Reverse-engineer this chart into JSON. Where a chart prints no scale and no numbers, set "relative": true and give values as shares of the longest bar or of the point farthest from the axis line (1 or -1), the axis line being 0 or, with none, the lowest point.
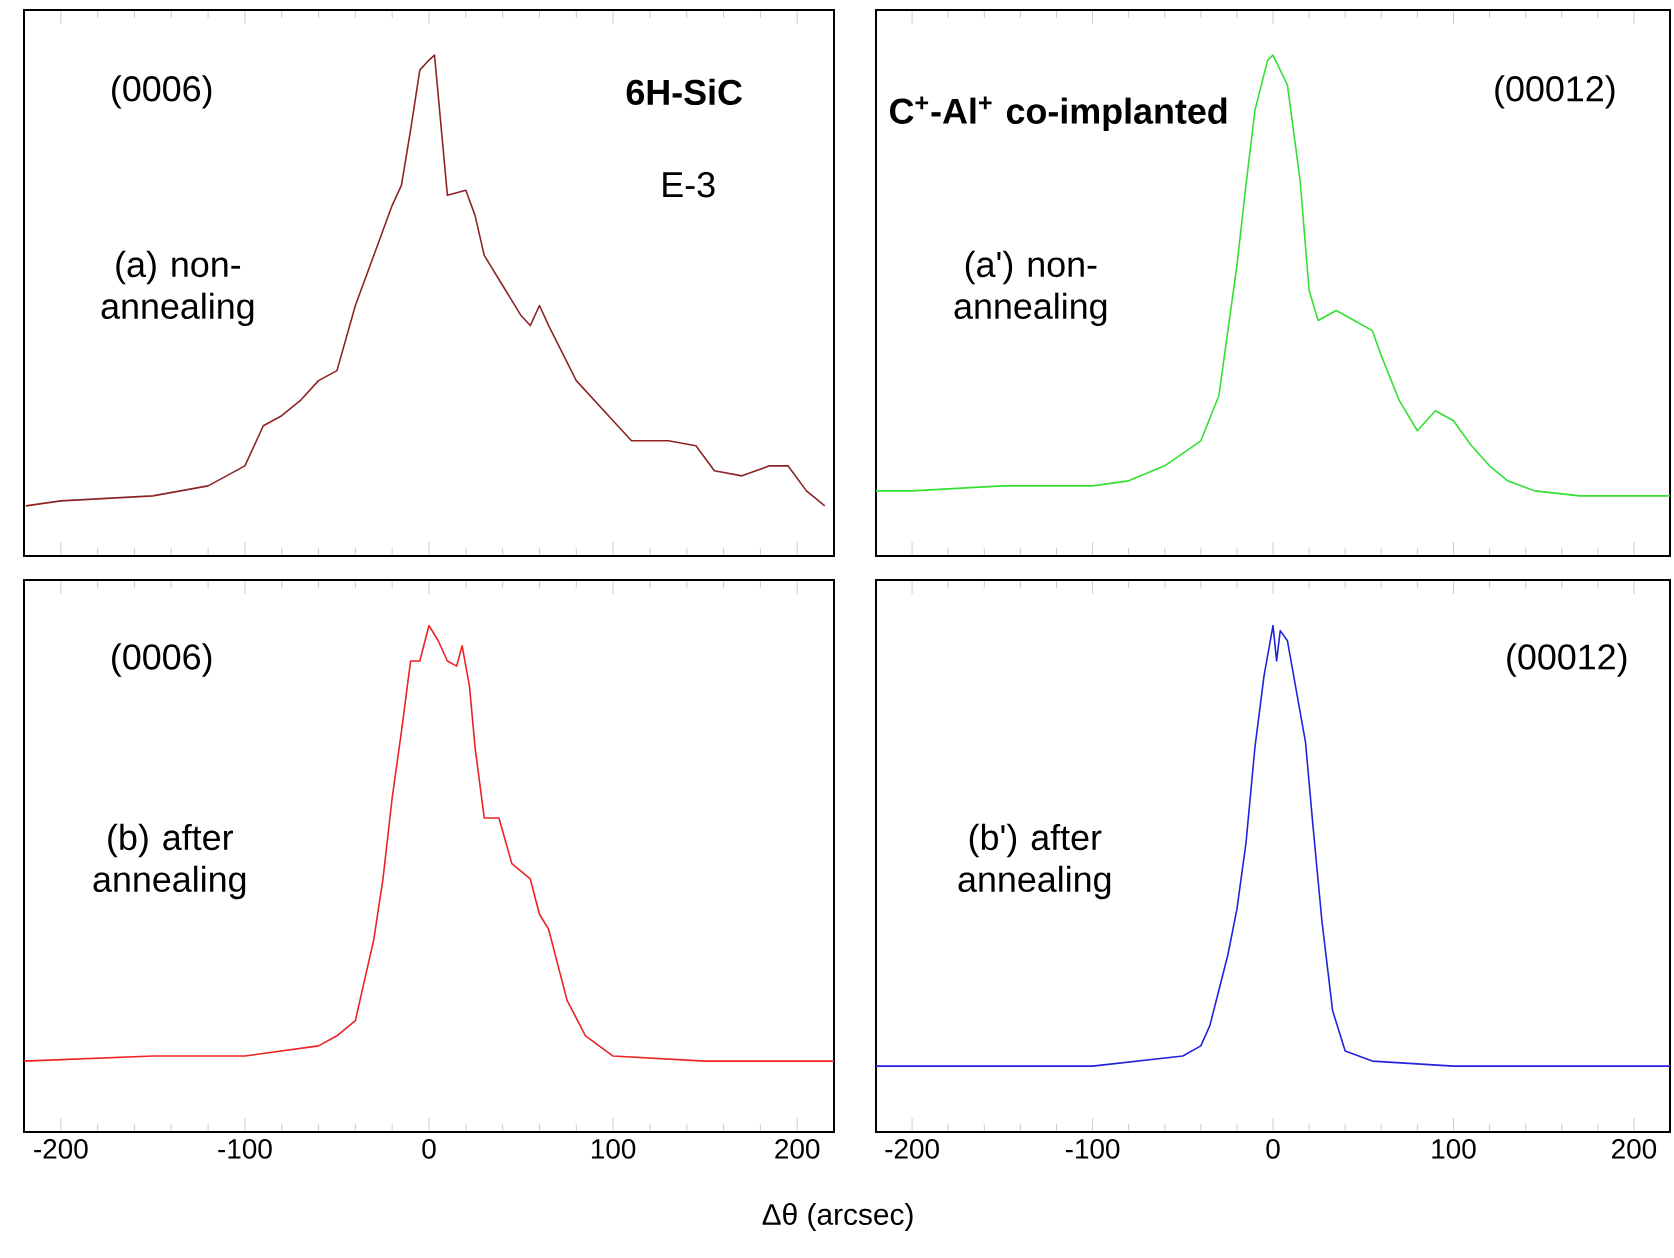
{
  "chart_data": [
    {
      "type": "line",
      "relative": true,
      "xlim": [
        -220,
        220
      ],
      "xticks": [
        -200,
        -100,
        0,
        100,
        200
      ],
      "tick_labels": false,
      "annotations": [
        "(0006)",
        "6H-SiC",
        "E-3",
        "(a) non-annealing"
      ],
      "series": [
        {
          "color": "#8b2525",
          "x": [
            -219,
            -200,
            -150,
            -120,
            -110,
            -100,
            -90,
            -80,
            -70,
            -60,
            -50,
            -40,
            -30,
            -20,
            -15,
            -10,
            -5,
            0,
            3,
            7,
            10,
            20,
            25,
            30,
            40,
            50,
            55,
            60,
            65,
            80,
            100,
            110,
            130,
            145,
            155,
            170,
            185,
            195,
            205,
            215
          ],
          "values": [
            0.1,
            0.11,
            0.12,
            0.14,
            0.16,
            0.18,
            0.26,
            0.28,
            0.31,
            0.35,
            0.37,
            0.5,
            0.6,
            0.7,
            0.74,
            0.85,
            0.97,
            0.99,
            1,
            0.84,
            0.72,
            0.73,
            0.68,
            0.6,
            0.54,
            0.48,
            0.46,
            0.5,
            0.46,
            0.35,
            0.27,
            0.23,
            0.23,
            0.22,
            0.17,
            0.16,
            0.18,
            0.18,
            0.13,
            0.1
          ]
        }
      ]
    },
    {
      "type": "line",
      "relative": true,
      "xlim": [
        -220,
        220
      ],
      "xticks": [
        -200,
        -100,
        0,
        100,
        200
      ],
      "tick_labels": false,
      "annotations": [
        "C$^{+}$-Al$^{+}$ co-implanted",
        "(00012)",
        "(a') non-annealing"
      ],
      "series": [
        {
          "color": "#33e033",
          "x": [
            -220,
            -200,
            -150,
            -100,
            -80,
            -60,
            -40,
            -30,
            -20,
            -15,
            -10,
            -3,
            0,
            8,
            15,
            20,
            25,
            35,
            45,
            55,
            60,
            70,
            80,
            90,
            100,
            110,
            120,
            130,
            145,
            170,
            220
          ],
          "values": [
            0.13,
            0.13,
            0.14,
            0.14,
            0.15,
            0.18,
            0.23,
            0.32,
            0.58,
            0.74,
            0.89,
            0.99,
            1,
            0.94,
            0.75,
            0.53,
            0.47,
            0.49,
            0.47,
            0.45,
            0.4,
            0.31,
            0.25,
            0.29,
            0.27,
            0.22,
            0.18,
            0.15,
            0.13,
            0.12,
            0.12
          ]
        }
      ]
    },
    {
      "type": "line",
      "relative": true,
      "xlim": [
        -220,
        220
      ],
      "xticks": [
        -200,
        -100,
        0,
        100,
        200
      ],
      "tick_labels": "x",
      "xlabel": "Δθ (arcsec)",
      "annotations": [
        "(0006)",
        "(b) after annealing"
      ],
      "series": [
        {
          "color": "#ee2222",
          "x": [
            -220,
            -150,
            -100,
            -60,
            -50,
            -40,
            -30,
            -25,
            -20,
            -15,
            -10,
            -5,
            0,
            5,
            10,
            15,
            18,
            22,
            25,
            30,
            38,
            45,
            55,
            60,
            65,
            75,
            85,
            100,
            150,
            220
          ],
          "values": [
            0.14,
            0.15,
            0.15,
            0.17,
            0.19,
            0.22,
            0.38,
            0.5,
            0.66,
            0.79,
            0.93,
            0.93,
            1,
            0.97,
            0.93,
            0.92,
            0.96,
            0.88,
            0.76,
            0.62,
            0.62,
            0.53,
            0.5,
            0.43,
            0.4,
            0.26,
            0.19,
            0.15,
            0.14,
            0.14
          ]
        }
      ]
    },
    {
      "type": "line",
      "relative": true,
      "xlim": [
        -220,
        220
      ],
      "xticks": [
        -200,
        -100,
        0,
        100,
        200
      ],
      "tick_labels": "x",
      "annotations": [
        "(00012)",
        "(b') after annealing"
      ],
      "series": [
        {
          "color": "#2222dd",
          "x": [
            -220,
            -100,
            -50,
            -40,
            -35,
            -30,
            -25,
            -20,
            -15,
            -10,
            -5,
            0,
            2,
            4,
            8,
            12,
            18,
            22,
            27,
            33,
            40,
            55,
            100,
            220
          ],
          "values": [
            0.13,
            0.13,
            0.15,
            0.17,
            0.21,
            0.28,
            0.35,
            0.44,
            0.57,
            0.76,
            0.9,
            1,
            0.93,
            0.99,
            0.97,
            0.89,
            0.77,
            0.61,
            0.42,
            0.24,
            0.16,
            0.14,
            0.13,
            0.13
          ]
        }
      ]
    }
  ]
}
